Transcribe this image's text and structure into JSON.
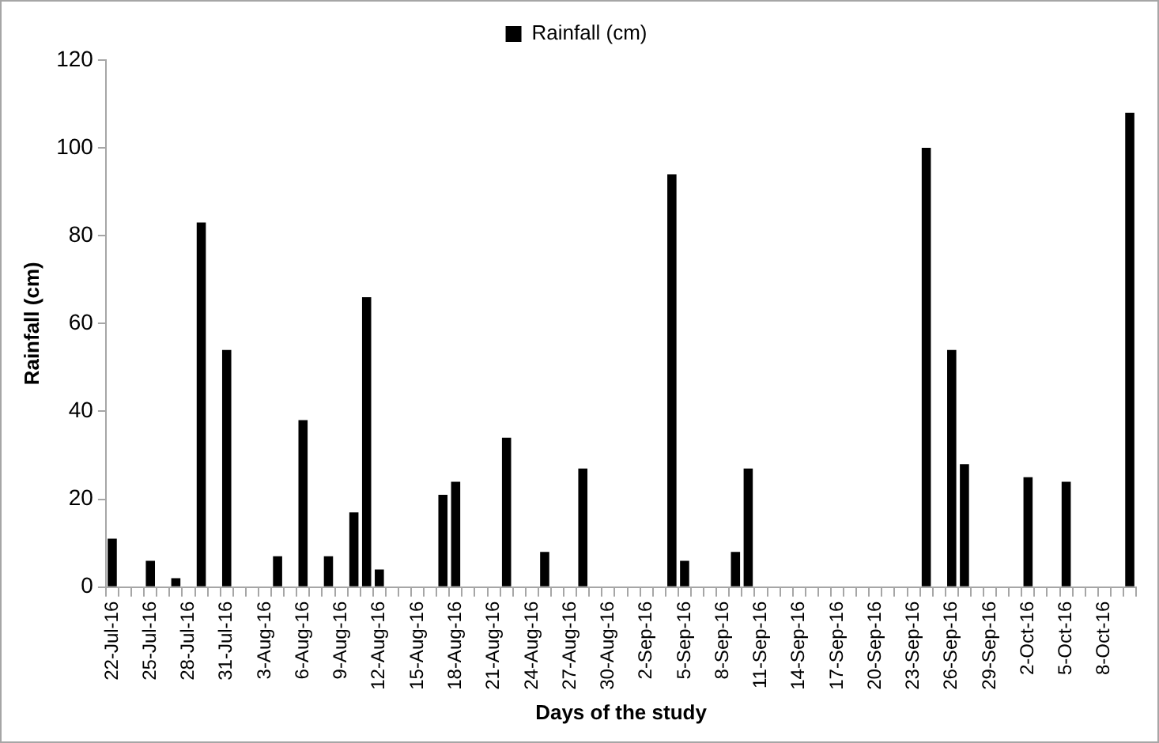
{
  "chart_data": {
    "type": "bar",
    "xlabel": "Days of the study",
    "ylabel": "Rainfall (cm)",
    "categories": [
      "22-Jul-16",
      null,
      null,
      "25-Jul-16",
      null,
      null,
      "28-Jul-16",
      null,
      null,
      "31-Jul-16",
      null,
      null,
      "3-Aug-16",
      null,
      null,
      "6-Aug-16",
      null,
      null,
      "9-Aug-16",
      null,
      null,
      "12-Aug-16",
      null,
      null,
      "15-Aug-16",
      null,
      null,
      "18-Aug-16",
      null,
      null,
      "21-Aug-16",
      null,
      null,
      "24-Aug-16",
      null,
      null,
      "27-Aug-16",
      null,
      null,
      "30-Aug-16",
      null,
      null,
      "2-Sep-16",
      null,
      null,
      "5-Sep-16",
      null,
      null,
      "8-Sep-16",
      null,
      null,
      "11-Sep-16",
      null,
      null,
      "14-Sep-16",
      null,
      null,
      "17-Sep-16",
      null,
      null,
      "20-Sep-16",
      null,
      null,
      "23-Sep-16",
      null,
      null,
      "26-Sep-16",
      null,
      null,
      "29-Sep-16",
      null,
      null,
      "2-Oct-16",
      null,
      null,
      "5-Oct-16",
      null,
      null,
      "8-Oct-16",
      null,
      null
    ],
    "series": [
      {
        "name": "Rainfall (cm)",
        "color": "#000000",
        "values": [
          11,
          0,
          0,
          6,
          0,
          2,
          0,
          83,
          0,
          54,
          0,
          0,
          0,
          7,
          0,
          38,
          0,
          7,
          0,
          17,
          66,
          4,
          0,
          0,
          0,
          0,
          21,
          24,
          0,
          0,
          0,
          34,
          0,
          0,
          8,
          0,
          0,
          27,
          0,
          0,
          0,
          0,
          0,
          0,
          94,
          6,
          0,
          0,
          0,
          8,
          27,
          0,
          0,
          0,
          0,
          0,
          0,
          0,
          0,
          0,
          0,
          0,
          0,
          0,
          100,
          0,
          54,
          28,
          0,
          0,
          0,
          0,
          25,
          0,
          0,
          24,
          0,
          0,
          0,
          0,
          108
        ]
      }
    ],
    "ylim": [
      0,
      120
    ],
    "yticks": [
      0,
      20,
      40,
      60,
      80,
      100,
      120
    ],
    "grid": false,
    "legend": "top"
  }
}
